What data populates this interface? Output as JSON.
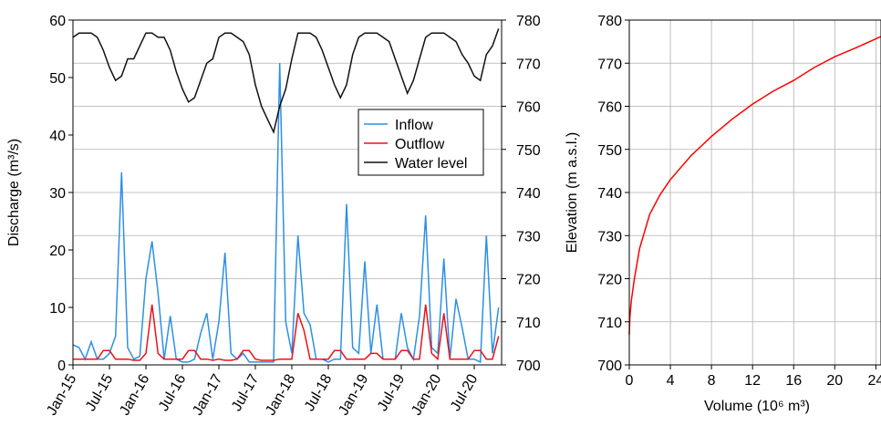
{
  "chart_data": [
    {
      "type": "line",
      "ylabel": "Discharge (m³/s)",
      "x": [
        "2015-01",
        "2015-02",
        "2015-03",
        "2015-04",
        "2015-05",
        "2015-06",
        "2015-07",
        "2015-08",
        "2015-09",
        "2015-10",
        "2015-11",
        "2015-12",
        "2016-01",
        "2016-02",
        "2016-03",
        "2016-04",
        "2016-05",
        "2016-06",
        "2016-07",
        "2016-08",
        "2016-09",
        "2016-10",
        "2016-11",
        "2016-12",
        "2017-01",
        "2017-02",
        "2017-03",
        "2017-04",
        "2017-05",
        "2017-06",
        "2017-07",
        "2017-08",
        "2017-09",
        "2017-10",
        "2017-11",
        "2017-12",
        "2018-01",
        "2018-02",
        "2018-03",
        "2018-04",
        "2018-05",
        "2018-06",
        "2018-07",
        "2018-08",
        "2018-09",
        "2018-10",
        "2018-11",
        "2018-12",
        "2019-01",
        "2019-02",
        "2019-03",
        "2019-04",
        "2019-05",
        "2019-06",
        "2019-07",
        "2019-08",
        "2019-09",
        "2019-10",
        "2019-11",
        "2019-12",
        "2020-01",
        "2020-02",
        "2020-03",
        "2020-04",
        "2020-05",
        "2020-06",
        "2020-07",
        "2020-08",
        "2020-09",
        "2020-10",
        "2020-11"
      ],
      "xticks": [
        {
          "value": "2015-01",
          "label": "Jan-15"
        },
        {
          "value": "2015-07",
          "label": "Jul-15"
        },
        {
          "value": "2016-01",
          "label": "Jan-16"
        },
        {
          "value": "2016-07",
          "label": "Jul-16"
        },
        {
          "value": "2017-01",
          "label": "Jan-17"
        },
        {
          "value": "2017-07",
          "label": "Jul-17"
        },
        {
          "value": "2018-01",
          "label": "Jan-18"
        },
        {
          "value": "2018-07",
          "label": "Jul-18"
        },
        {
          "value": "2019-01",
          "label": "Jan-19"
        },
        {
          "value": "2019-07",
          "label": "Jul-19"
        },
        {
          "value": "2020-01",
          "label": "Jan-20"
        },
        {
          "value": "2020-07",
          "label": "Jul-20"
        }
      ],
      "ylim": [
        0,
        60
      ],
      "yticks": [
        0,
        10,
        20,
        30,
        40,
        50,
        60
      ],
      "y2lim": [
        700,
        780
      ],
      "y2ticks": [
        700,
        710,
        720,
        730,
        740,
        750,
        760,
        770,
        780
      ],
      "grid": true,
      "legend": "upper right",
      "series": [
        {
          "name": "Inflow",
          "color": "#2d8fe6",
          "values": [
            3.5,
            3,
            1,
            4,
            1,
            1,
            2,
            5,
            33.5,
            3,
            1,
            1.5,
            15,
            21.5,
            12.5,
            1,
            8.5,
            1,
            0.5,
            0.5,
            1,
            5.5,
            9,
            1,
            7.5,
            19.5,
            2,
            1,
            2,
            0.5,
            0.5,
            0.5,
            0.5,
            0.5,
            52.5,
            7.5,
            2,
            22.5,
            9,
            7,
            1,
            1,
            0.5,
            1,
            1,
            28,
            3,
            2,
            18,
            2,
            10.5,
            1,
            1,
            1,
            9,
            3,
            1,
            8.5,
            26,
            3,
            2,
            18.5,
            1,
            11.5,
            6.5,
            1,
            1,
            0.5,
            22.5,
            2,
            10
          ]
        },
        {
          "name": "Outflow",
          "color": "#e8141b",
          "values": [
            1,
            1,
            1,
            1,
            1,
            2.5,
            2.5,
            1,
            1,
            1,
            0.8,
            0.8,
            2,
            10.5,
            2,
            1,
            1,
            1,
            1,
            2.5,
            2.5,
            1,
            1,
            0.8,
            1,
            0.8,
            0.8,
            1,
            2.5,
            2.5,
            1,
            0.8,
            0.8,
            0.8,
            1,
            1,
            1,
            9,
            6,
            1,
            1,
            1,
            1,
            2.5,
            2.5,
            1,
            1,
            1,
            1,
            2,
            2,
            1,
            1,
            1,
            2.5,
            2.5,
            1,
            1,
            10.5,
            2,
            1,
            9,
            1,
            1,
            1,
            1,
            2.5,
            2.5,
            1,
            1,
            5
          ]
        },
        {
          "name": "Water level",
          "color": "#111111",
          "axis": "y2",
          "values": [
            776,
            777,
            777,
            777,
            776,
            773,
            769,
            766,
            767,
            771,
            771,
            774,
            777,
            777,
            776,
            776,
            773,
            768,
            764,
            761,
            762,
            766,
            770,
            771,
            776,
            777,
            777,
            776,
            775,
            772,
            765,
            760,
            757,
            754,
            760,
            764,
            771,
            777,
            777,
            777,
            776,
            773,
            769,
            765,
            762,
            765,
            772,
            776,
            777,
            777,
            777,
            776,
            775,
            771,
            767,
            763,
            766,
            771,
            776,
            777,
            777,
            777,
            776,
            775,
            772,
            770,
            767,
            766,
            772,
            774,
            778
          ]
        }
      ]
    },
    {
      "type": "line",
      "xlabel": "Volume (10⁶ m³)",
      "ylabel": "Elevation (m a.s.l.)",
      "x": [
        0,
        0.05,
        0.2,
        0.5,
        1,
        2,
        3,
        4,
        6,
        8,
        10,
        12,
        14,
        16,
        18,
        20,
        22,
        24.5
      ],
      "xlim": [
        0,
        24.5
      ],
      "xticks": [
        0,
        4,
        8,
        12,
        16,
        20,
        24
      ],
      "ylim": [
        700,
        780
      ],
      "yticks": [
        700,
        710,
        720,
        730,
        740,
        750,
        760,
        770,
        780
      ],
      "grid": true,
      "series": [
        {
          "name": "Elevation",
          "color": "#ff0000",
          "values": [
            707,
            711,
            715,
            720,
            727,
            735,
            739.5,
            743,
            748.5,
            753,
            757,
            760.5,
            763.5,
            766,
            769,
            771.5,
            773.5,
            776.2
          ]
        }
      ]
    }
  ]
}
